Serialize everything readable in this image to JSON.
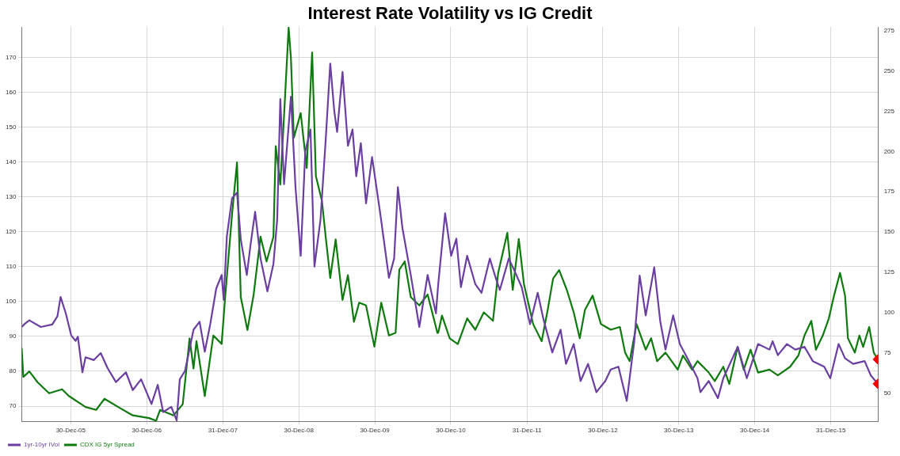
{
  "chart_data": {
    "type": "line",
    "title": "Interest Rate Volatility vs IG Credit",
    "xlim": [
      "2005-05-08",
      "2016-08-15"
    ],
    "xticks": [
      {
        "value": "2005-12-30",
        "label": "30-Dec-05"
      },
      {
        "value": "2006-12-30",
        "label": "30-Dec-06"
      },
      {
        "value": "2007-12-31",
        "label": "31-Dec-07"
      },
      {
        "value": "2008-12-30",
        "label": "30-Dec-08"
      },
      {
        "value": "2009-12-30",
        "label": "30-Dec-09"
      },
      {
        "value": "2010-12-30",
        "label": "30-Dec-10"
      },
      {
        "value": "2011-12-31",
        "label": "31-Dec-11"
      },
      {
        "value": "2012-12-30",
        "label": "30-Dec-12"
      },
      {
        "value": "2013-12-30",
        "label": "30-Dec-13"
      },
      {
        "value": "2014-12-30",
        "label": "30-Dec-14"
      },
      {
        "value": "2015-12-31",
        "label": "31-Dec-15"
      }
    ],
    "ylim": [
      65.6,
      178.7
    ],
    "yticks": [
      70,
      80,
      90,
      100,
      110,
      120,
      130,
      140,
      150,
      160,
      170
    ],
    "y2lim": [
      32.3,
      277.4
    ],
    "y2ticks": [
      50,
      75,
      100,
      125,
      150,
      175,
      200,
      225,
      250,
      275
    ],
    "grid": true,
    "legend": "bottom left",
    "series": [
      {
        "name": "1yr-10yr IVol",
        "color": "#6b3fa0",
        "x": [
          "2005-05-08",
          "2005-05-27",
          "2005-06-14",
          "2005-08-08",
          "2005-10-02",
          "2005-10-27",
          "2005-11-11",
          "2005-12-06",
          "2006-01-01",
          "2006-01-22",
          "2006-02-02",
          "2006-02-24",
          "2006-03-11",
          "2006-04-20",
          "2006-05-23",
          "2006-06-25",
          "2006-08-04",
          "2006-09-21",
          "2006-10-24",
          "2006-12-03",
          "2007-01-22",
          "2007-02-21",
          "2007-03-19",
          "2007-04-27",
          "2007-05-23",
          "2007-06-07",
          "2007-07-02",
          "2007-08-12",
          "2007-09-10",
          "2007-10-05",
          "2007-10-31",
          "2007-11-29",
          "2007-12-25",
          "2008-01-04",
          "2008-01-19",
          "2008-02-13",
          "2008-03-08",
          "2008-03-26",
          "2008-04-24",
          "2008-05-12",
          "2008-06-03",
          "2008-06-29",
          "2008-08-01",
          "2008-08-30",
          "2008-09-17",
          "2008-10-02",
          "2008-10-20",
          "2008-11-22",
          "2008-12-14",
          "2009-01-08",
          "2009-01-30",
          "2009-02-24",
          "2009-03-15",
          "2009-04-13",
          "2009-05-08",
          "2009-05-30",
          "2009-06-18",
          "2009-07-02",
          "2009-07-28",
          "2009-08-23",
          "2009-09-14",
          "2009-10-02",
          "2009-10-24",
          "2009-11-18",
          "2009-12-17",
          "2010-01-26",
          "2010-03-08",
          "2010-04-02",
          "2010-04-20",
          "2010-05-12",
          "2010-06-21",
          "2010-08-01",
          "2010-09-10",
          "2010-10-20",
          "2010-10-31",
          "2010-12-03",
          "2011-01-01",
          "2011-01-26",
          "2011-02-17",
          "2011-03-19",
          "2011-04-27",
          "2011-05-27",
          "2011-07-06",
          "2011-08-04",
          "2011-08-23",
          "2011-10-05",
          "2011-10-31",
          "2011-12-06",
          "2012-01-15",
          "2012-02-21",
          "2012-03-19",
          "2012-05-01",
          "2012-06-10",
          "2012-07-06",
          "2012-08-12",
          "2012-09-14",
          "2012-10-20",
          "2012-11-29",
          "2013-01-11",
          "2013-02-06",
          "2013-03-15",
          "2013-04-24",
          "2013-05-30",
          "2013-06-25",
          "2013-07-24",
          "2013-09-03",
          "2013-10-02",
          "2013-10-27",
          "2013-12-03",
          "2014-01-04",
          "2014-02-02",
          "2014-03-30",
          "2014-04-13",
          "2014-05-23",
          "2014-07-06",
          "2014-08-01",
          "2014-10-09",
          "2014-11-22",
          "2015-01-15",
          "2015-03-11",
          "2015-03-26",
          "2015-04-20",
          "2015-06-03",
          "2015-07-13",
          "2015-08-26",
          "2015-10-05",
          "2015-11-29",
          "2015-12-28",
          "2016-02-06",
          "2016-03-08",
          "2016-04-16",
          "2016-06-10",
          "2016-07-10",
          "2016-08-12"
        ],
        "values": [
          92.7,
          93.8,
          94.6,
          92.7,
          93.4,
          95.8,
          101.3,
          96.6,
          90.3,
          88.7,
          89.9,
          79.7,
          84.0,
          83.2,
          85.2,
          80.9,
          76.9,
          79.7,
          74.6,
          77.7,
          70.6,
          76.1,
          68.3,
          69.8,
          65.9,
          77.7,
          80.1,
          91.9,
          94.2,
          85.6,
          93.4,
          103.7,
          107.6,
          100.5,
          118.6,
          129.6,
          131.2,
          117.8,
          107.6,
          116.3,
          125.7,
          112.3,
          102.9,
          110.8,
          123.4,
          158.0,
          133.6,
          158.7,
          132.8,
          113.1,
          143.0,
          149.3,
          110.0,
          123.4,
          146.2,
          168.2,
          154.8,
          148.6,
          165.8,
          144.6,
          149.3,
          135.9,
          145.4,
          128.1,
          141.4,
          124.9,
          106.8,
          112.3,
          132.8,
          121.0,
          107.6,
          92.7,
          107.6,
          96.6,
          105.0,
          125.3,
          113.1,
          118.0,
          104.1,
          113.1,
          105.0,
          102.5,
          112.3,
          106.6,
          103.3,
          112.3,
          109.0,
          104.1,
          93.5,
          102.5,
          95.1,
          85.4,
          91.9,
          82.1,
          87.8,
          77.2,
          82.1,
          74.0,
          77.2,
          80.5,
          81.3,
          71.5,
          88.6,
          107.4,
          96.0,
          109.8,
          94.3,
          86.2,
          96.0,
          87.8,
          84.6,
          78.0,
          74.0,
          77.2,
          72.3,
          78.0,
          87.0,
          78.0,
          87.8,
          86.2,
          88.6,
          84.6,
          87.8,
          86.2,
          87.0,
          82.9,
          81.3,
          78.0,
          87.8,
          83.7,
          82.1,
          82.9,
          78.8,
          76.4
        ]
      },
      {
        "name": "CDX IG 5yr Spread",
        "color": "#0f7a0f",
        "axis": "y2",
        "x": [
          "2005-05-08",
          "2005-05-16",
          "2005-06-14",
          "2005-07-24",
          "2005-09-17",
          "2005-11-18",
          "2005-12-21",
          "2006-03-11",
          "2006-05-01",
          "2006-06-10",
          "2006-08-15",
          "2006-10-24",
          "2007-01-11",
          "2007-02-13",
          "2007-03-04",
          "2007-05-08",
          "2007-06-21",
          "2007-07-24",
          "2007-08-12",
          "2007-08-26",
          "2007-10-05",
          "2007-11-15",
          "2007-12-25",
          "2008-01-11",
          "2008-02-13",
          "2008-03-08",
          "2008-03-26",
          "2008-04-27",
          "2008-05-27",
          "2008-06-29",
          "2008-07-28",
          "2008-08-30",
          "2008-09-10",
          "2008-10-02",
          "2008-10-20",
          "2008-11-11",
          "2008-11-22",
          "2008-12-06",
          "2009-01-08",
          "2009-02-06",
          "2009-03-04",
          "2009-03-22",
          "2009-04-20",
          "2009-05-08",
          "2009-05-30",
          "2009-06-25",
          "2009-07-28",
          "2009-08-23",
          "2009-09-21",
          "2009-10-16",
          "2009-11-18",
          "2009-12-28",
          "2010-01-30",
          "2010-03-08",
          "2010-04-09",
          "2010-04-27",
          "2010-05-23",
          "2010-06-21",
          "2010-08-01",
          "2010-09-10",
          "2010-10-27",
          "2010-10-31",
          "2010-11-18",
          "2010-12-25",
          "2011-02-02",
          "2011-03-19",
          "2011-04-27",
          "2011-06-07",
          "2011-07-21",
          "2011-08-15",
          "2011-09-28",
          "2011-10-24",
          "2011-11-22",
          "2011-12-17",
          "2012-01-30",
          "2012-03-11",
          "2012-04-09",
          "2012-05-05",
          "2012-06-03",
          "2012-07-10",
          "2012-08-12",
          "2012-09-10",
          "2012-10-05",
          "2012-11-11",
          "2012-12-21",
          "2013-02-06",
          "2013-03-22",
          "2013-04-16",
          "2013-05-08",
          "2013-06-10",
          "2013-07-24",
          "2013-08-19",
          "2013-09-17",
          "2013-10-27",
          "2013-12-25",
          "2014-01-19",
          "2014-03-04",
          "2014-03-30",
          "2014-05-23",
          "2014-06-21",
          "2014-08-01",
          "2014-08-30",
          "2014-10-09",
          "2014-11-07",
          "2014-12-10",
          "2015-01-15",
          "2015-03-11",
          "2015-04-20",
          "2015-06-18",
          "2015-07-28",
          "2015-08-26",
          "2015-09-28",
          "2015-10-20",
          "2015-11-22",
          "2015-12-21",
          "2016-01-15",
          "2016-02-13",
          "2016-03-08",
          "2016-03-22",
          "2016-04-24",
          "2016-05-16",
          "2016-06-03",
          "2016-07-02",
          "2016-07-24",
          "2016-08-12"
        ],
        "values": [
          78.0,
          60.0,
          63.4,
          56.6,
          49.8,
          52.3,
          48.1,
          41.3,
          39.5,
          46.4,
          41.3,
          36.1,
          34.4,
          32.7,
          39.5,
          36.1,
          43.0,
          83.9,
          65.2,
          82.2,
          48.1,
          85.7,
          80.5,
          109.6,
          160.8,
          193.2,
          109.6,
          89.1,
          111.2,
          147.1,
          131.7,
          147.1,
          203.4,
          179.5,
          222.2,
          276.9,
          258.1,
          208.6,
          223.9,
          189.8,
          261.5,
          184.7,
          169.3,
          147.1,
          121.5,
          145.4,
          107.8,
          123.2,
          94.2,
          106.1,
          104.4,
          78.8,
          106.1,
          85.7,
          87.3,
          126.6,
          131.7,
          109.6,
          104.4,
          111.2,
          87.3,
          87.5,
          98.1,
          84.0,
          80.4,
          96.3,
          89.3,
          100.1,
          94.8,
          124.6,
          149.5,
          114.0,
          145.7,
          117.6,
          92.8,
          82.2,
          101.6,
          121.1,
          126.4,
          114.0,
          100.1,
          84.0,
          101.6,
          110.5,
          92.8,
          89.3,
          91.0,
          75.1,
          69.8,
          92.8,
          76.9,
          84.0,
          69.8,
          75.1,
          64.5,
          73.3,
          64.5,
          69.8,
          62.7,
          57.4,
          66.3,
          55.6,
          78.6,
          64.5,
          76.9,
          62.7,
          64.5,
          61.0,
          66.3,
          73.3,
          85.7,
          94.8,
          76.9,
          85.7,
          96.3,
          110.5,
          124.6,
          110.5,
          84.0,
          75.1,
          85.7,
          78.6,
          91.0,
          75.1,
          70.9
        ]
      },
      {
        "type": "scatter",
        "marker": "diamond",
        "color": "#ff0000",
        "x": [
          "2016-08-12"
        ],
        "values": [
          76.4
        ]
      },
      {
        "type": "scatter",
        "marker": "diamond",
        "color": "#ff0000",
        "axis": "y2",
        "x": [
          "2016-08-12"
        ],
        "values": [
          70.9
        ]
      }
    ]
  }
}
